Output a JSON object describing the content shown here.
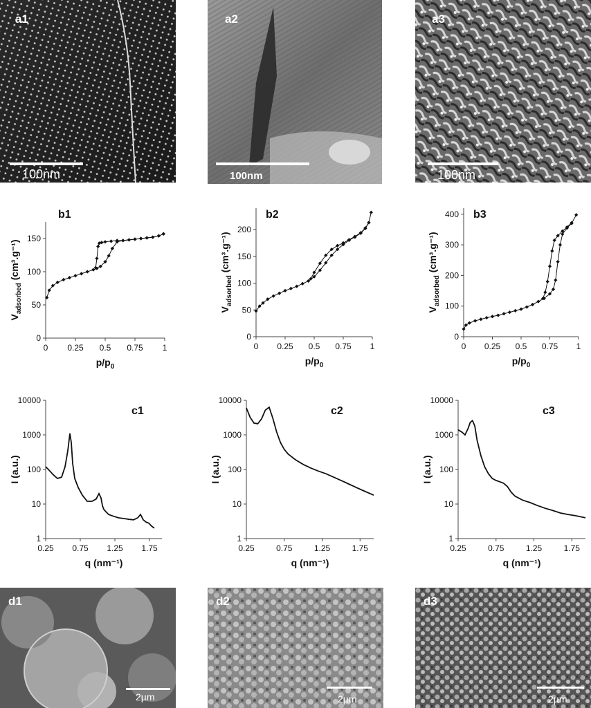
{
  "images": [
    {
      "id": "a1",
      "label": "a1",
      "scale": "100nm"
    },
    {
      "id": "a2",
      "label": "a2",
      "scale": "100nm"
    },
    {
      "id": "a3",
      "label": "a3",
      "scale": "100nm"
    },
    {
      "id": "d1",
      "label": "d1",
      "scale": "2µm"
    },
    {
      "id": "d2",
      "label": "d2",
      "scale": "2µm"
    },
    {
      "id": "d3",
      "label": "d3",
      "scale": "2µm"
    }
  ],
  "chart_data": [
    {
      "id": "b1",
      "type": "line",
      "label": "b1",
      "xlabel": "p/p",
      "xlabel_sub": "0",
      "ylabel": "V",
      "ylabel_sub": "adsorbed",
      "ylabel_unit": " (cm³.g⁻¹)",
      "xlim": [
        0,
        1
      ],
      "ylim": [
        0,
        175
      ],
      "xticks": [
        "0",
        "0.25",
        "0.5",
        "0.75",
        "1"
      ],
      "xtick_values": [
        0,
        0.25,
        0.5,
        0.75,
        1
      ],
      "yticks": [
        "0",
        "50",
        "100",
        "150"
      ],
      "ytick_values": [
        0,
        50,
        100,
        150
      ],
      "series": [
        {
          "x": [
            0.01,
            0.03,
            0.06,
            0.1,
            0.15,
            0.2,
            0.25,
            0.3,
            0.35,
            0.4,
            0.43,
            0.46,
            0.5,
            0.53,
            0.56,
            0.6,
            0.65,
            0.7,
            0.75,
            0.8,
            0.85,
            0.9,
            0.95,
            0.99
          ],
          "y": [
            61,
            72,
            79,
            84,
            88,
            91,
            94,
            97,
            100,
            103,
            105,
            108,
            115,
            124,
            135,
            145,
            147,
            148,
            149,
            150,
            151,
            152,
            154,
            157
          ]
        },
        {
          "x": [
            0.99,
            0.95,
            0.9,
            0.85,
            0.8,
            0.75,
            0.7,
            0.65,
            0.6,
            0.55,
            0.5,
            0.47,
            0.45,
            0.44,
            0.43,
            0.42
          ],
          "y": [
            157,
            154,
            152,
            151,
            150,
            149,
            148,
            147,
            147,
            146,
            145,
            144,
            143,
            138,
            120,
            106
          ]
        }
      ]
    },
    {
      "id": "b2",
      "type": "line",
      "label": "b2",
      "xlabel": "p/p",
      "xlabel_sub": "0",
      "ylabel": "V",
      "ylabel_sub": "adsorbed",
      "ylabel_unit": " (cm³.g⁻¹)",
      "xlim": [
        0,
        1
      ],
      "ylim": [
        0,
        240
      ],
      "xticks": [
        "0",
        "0.25",
        "0.5",
        "0.75",
        "1"
      ],
      "xtick_values": [
        0,
        0.25,
        0.5,
        0.75,
        1
      ],
      "yticks": [
        "0",
        "50",
        "100",
        "150",
        "200"
      ],
      "ytick_values": [
        0,
        50,
        100,
        150,
        200
      ],
      "series": [
        {
          "x": [
            0.0,
            0.03,
            0.06,
            0.1,
            0.15,
            0.2,
            0.25,
            0.3,
            0.35,
            0.4,
            0.45,
            0.5,
            0.55,
            0.6,
            0.65,
            0.7,
            0.75,
            0.8,
            0.85,
            0.9,
            0.94,
            0.97,
            0.99
          ],
          "y": [
            48,
            57,
            63,
            70,
            76,
            81,
            86,
            90,
            94,
            99,
            104,
            112,
            124,
            138,
            152,
            163,
            172,
            180,
            186,
            193,
            202,
            213,
            232
          ]
        },
        {
          "x": [
            0.97,
            0.94,
            0.9,
            0.85,
            0.8,
            0.75,
            0.7,
            0.65,
            0.6,
            0.55,
            0.5,
            0.47
          ],
          "y": [
            213,
            203,
            194,
            187,
            181,
            175,
            170,
            163,
            152,
            137,
            120,
            108
          ]
        }
      ]
    },
    {
      "id": "b3",
      "type": "line",
      "label": "b3",
      "xlabel": "p/p",
      "xlabel_sub": "0",
      "ylabel": "V",
      "ylabel_sub": "adsorbed",
      "ylabel_unit": " (cm³.g⁻¹)",
      "xlim": [
        0,
        1
      ],
      "ylim": [
        0,
        420
      ],
      "xticks": [
        "0",
        "0.25",
        "0.5",
        "0.75",
        "1"
      ],
      "xtick_values": [
        0,
        0.25,
        0.5,
        0.75,
        1
      ],
      "yticks": [
        "0",
        "100",
        "200",
        "300",
        "400"
      ],
      "ytick_values": [
        0,
        100,
        200,
        300,
        400
      ],
      "series": [
        {
          "x": [
            0.0,
            0.02,
            0.05,
            0.1,
            0.15,
            0.2,
            0.25,
            0.3,
            0.35,
            0.4,
            0.45,
            0.5,
            0.55,
            0.6,
            0.65,
            0.7,
            0.75,
            0.78,
            0.8,
            0.82,
            0.84,
            0.86,
            0.9,
            0.94,
            0.98
          ],
          "y": [
            25,
            38,
            45,
            52,
            57,
            62,
            66,
            70,
            75,
            80,
            85,
            90,
            97,
            105,
            115,
            125,
            140,
            155,
            185,
            245,
            300,
            335,
            355,
            370,
            398
          ]
        },
        {
          "x": [
            0.94,
            0.9,
            0.86,
            0.82,
            0.79,
            0.77,
            0.75,
            0.73,
            0.71,
            0.69
          ],
          "y": [
            372,
            358,
            345,
            330,
            315,
            280,
            230,
            180,
            145,
            125
          ]
        }
      ]
    },
    {
      "id": "c1",
      "type": "line",
      "label": "c1",
      "yscale": "log",
      "xlabel": "q (nm⁻¹)",
      "ylabel": "I (a.u.)",
      "xlim": [
        0.25,
        1.93
      ],
      "ylim": [
        1,
        10000
      ],
      "xticks": [
        "0.25",
        "0.75",
        "1.25",
        "1.75"
      ],
      "xtick_values": [
        0.25,
        0.75,
        1.25,
        1.75
      ],
      "yticks": [
        "1",
        "10",
        "100",
        "1000",
        "10000"
      ],
      "ytick_values": [
        1,
        10,
        100,
        1000,
        10000
      ],
      "series": [
        {
          "x": [
            0.25,
            0.3,
            0.36,
            0.42,
            0.48,
            0.53,
            0.57,
            0.6,
            0.62,
            0.64,
            0.67,
            0.72,
            0.78,
            0.85,
            0.92,
            0.98,
            1.02,
            1.05,
            1.07,
            1.09,
            1.12,
            1.16,
            1.22,
            1.3,
            1.38,
            1.46,
            1.52,
            1.58,
            1.62,
            1.66,
            1.7,
            1.74,
            1.78,
            1.82
          ],
          "y": [
            120,
            95,
            70,
            55,
            60,
            120,
            350,
            1100,
            600,
            150,
            55,
            30,
            18,
            12,
            12,
            14,
            20,
            15,
            9,
            7,
            6,
            5,
            4.5,
            4,
            3.8,
            3.6,
            3.5,
            4,
            5,
            3.5,
            3,
            2.8,
            2.3,
            2
          ]
        }
      ]
    },
    {
      "id": "c2",
      "type": "line",
      "label": "c2",
      "yscale": "log",
      "xlabel": "q (nm⁻¹)",
      "ylabel": "I (a.u.)",
      "xlim": [
        0.25,
        1.93
      ],
      "ylim": [
        1,
        10000
      ],
      "xticks": [
        "0.25",
        "0.75",
        "1.25",
        "1.75"
      ],
      "xtick_values": [
        0.25,
        0.75,
        1.25,
        1.75
      ],
      "yticks": [
        "1",
        "10",
        "100",
        "1000",
        "10000"
      ],
      "ytick_values": [
        1,
        10,
        100,
        1000,
        10000
      ],
      "series": [
        {
          "x": [
            0.25,
            0.3,
            0.35,
            0.4,
            0.45,
            0.5,
            0.55,
            0.6,
            0.65,
            0.7,
            0.75,
            0.8,
            0.9,
            1.0,
            1.1,
            1.2,
            1.3,
            1.4,
            1.5,
            1.6,
            1.7,
            1.8,
            1.93
          ],
          "y": [
            6000,
            3200,
            2200,
            2100,
            2900,
            5200,
            6300,
            3000,
            1200,
            600,
            380,
            280,
            190,
            140,
            110,
            90,
            75,
            60,
            48,
            38,
            30,
            24,
            18
          ]
        }
      ]
    },
    {
      "id": "c3",
      "type": "line",
      "label": "c3",
      "yscale": "log",
      "xlabel": "q (nm⁻¹)",
      "ylabel": "I (a.u.)",
      "xlim": [
        0.25,
        1.93
      ],
      "ylim": [
        1,
        10000
      ],
      "xticks": [
        "0.25",
        "0.75",
        "1.25",
        "1.75"
      ],
      "xtick_values": [
        0.25,
        0.75,
        1.25,
        1.75
      ],
      "yticks": [
        "1",
        "10",
        "100",
        "1000",
        "10000"
      ],
      "ytick_values": [
        1,
        10,
        100,
        1000,
        10000
      ],
      "series": [
        {
          "x": [
            0.25,
            0.3,
            0.34,
            0.38,
            0.41,
            0.44,
            0.47,
            0.5,
            0.55,
            0.6,
            0.65,
            0.7,
            0.75,
            0.8,
            0.85,
            0.9,
            0.95,
            1.0,
            1.1,
            1.2,
            1.3,
            1.4,
            1.5,
            1.6,
            1.7,
            1.8,
            1.93
          ],
          "y": [
            1400,
            1200,
            1000,
            1500,
            2300,
            2600,
            1800,
            700,
            250,
            120,
            75,
            55,
            48,
            44,
            40,
            32,
            22,
            17,
            13,
            11,
            9,
            7.5,
            6.5,
            5.5,
            5,
            4.6,
            4
          ]
        }
      ]
    }
  ]
}
